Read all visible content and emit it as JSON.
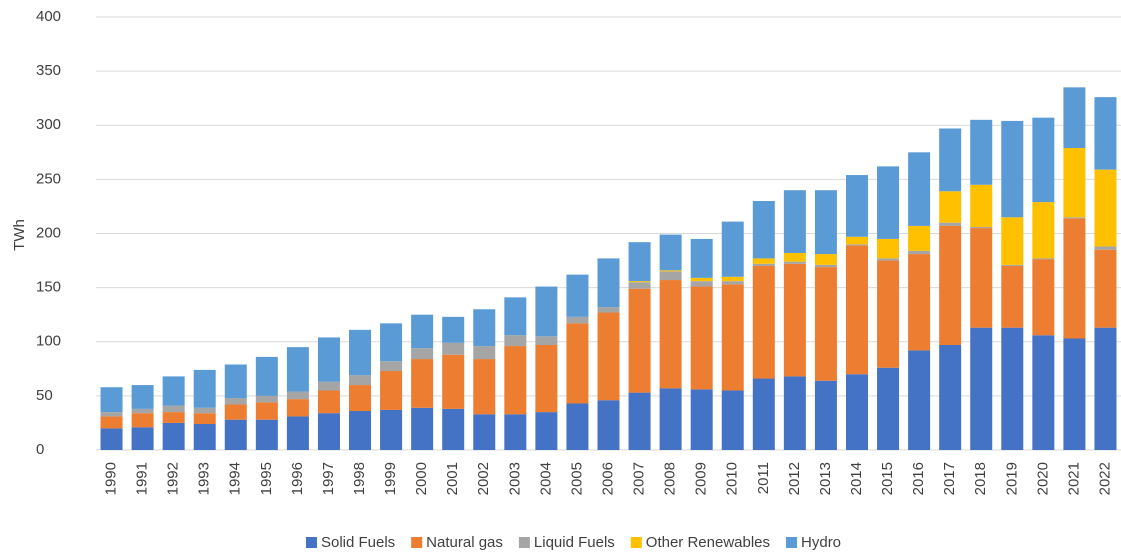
{
  "chart_data": {
    "type": "stacked_bar",
    "y_label": "TWh",
    "categories": [
      "1990",
      "1991",
      "1992",
      "1993",
      "1994",
      "1995",
      "1996",
      "1997",
      "1998",
      "1999",
      "2000",
      "2001",
      "2002",
      "2003",
      "2004",
      "2005",
      "2006",
      "2007",
      "2008",
      "2009",
      "2010",
      "2011",
      "2012",
      "2013",
      "2014",
      "2015",
      "2016",
      "2017",
      "2018",
      "2019",
      "2020",
      "2021",
      "2022"
    ],
    "series": [
      {
        "name": "Solid Fuels",
        "color": "#4472c4",
        "values": [
          20,
          21,
          25,
          24,
          28,
          28,
          31,
          34,
          36,
          37,
          39,
          38,
          33,
          33,
          35,
          43,
          46,
          53,
          57,
          56,
          55,
          66,
          68,
          64,
          70,
          76,
          92,
          97,
          113,
          113,
          106,
          103,
          113
        ]
      },
      {
        "name": "Natural gas",
        "color": "#ed7d31",
        "values": [
          11,
          13,
          10,
          10,
          14,
          16,
          16,
          21,
          24,
          36,
          45,
          50,
          51,
          63,
          62,
          74,
          81,
          96,
          100,
          95,
          98,
          104,
          104,
          105,
          119,
          99,
          89,
          110,
          92,
          57,
          70,
          111,
          72
        ]
      },
      {
        "name": "Liquid Fuels",
        "color": "#a5a5a5",
        "values": [
          4,
          4,
          6,
          5,
          6,
          6,
          7,
          8,
          9,
          9,
          10,
          11,
          12,
          10,
          8,
          6,
          5,
          6,
          8,
          5,
          3,
          2,
          2,
          2,
          1,
          2,
          3,
          3,
          1,
          1,
          1,
          1,
          3
        ]
      },
      {
        "name": "Other Renewables",
        "color": "#ffc000",
        "values": [
          0,
          0,
          0,
          0,
          0,
          0,
          0,
          0,
          0,
          0,
          0,
          0,
          0,
          0,
          0,
          0,
          0,
          1,
          1,
          3,
          4,
          5,
          8,
          10,
          7,
          18,
          23,
          29,
          39,
          44,
          52,
          64,
          71
        ]
      },
      {
        "name": "Hydro",
        "color": "#5b9bd5",
        "values": [
          23,
          22,
          27,
          35,
          31,
          36,
          41,
          41,
          42,
          35,
          31,
          24,
          34,
          35,
          46,
          39,
          45,
          36,
          33,
          36,
          51,
          53,
          58,
          59,
          57,
          67,
          68,
          58,
          60,
          89,
          78,
          56,
          67
        ]
      }
    ],
    "ylim": [
      0,
      400
    ],
    "yticks": [
      0,
      50,
      100,
      150,
      200,
      250,
      300,
      350,
      400
    ],
    "grid": true,
    "legend": "bottom"
  }
}
